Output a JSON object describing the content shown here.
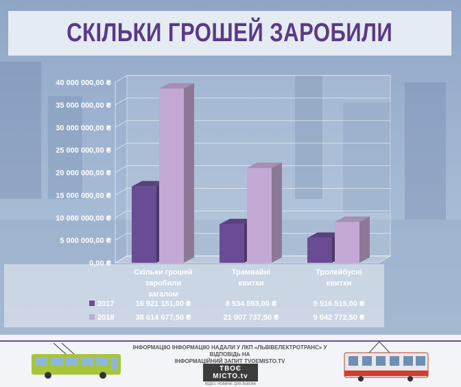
{
  "title": "СКІЛЬКИ ГРОШЕЙ ЗАРОБИЛИ",
  "footer": {
    "info_line1": "ІНФОРМАЦІЮ ІНФОРМАЦІЮ НАДАЛИ У ЛКП «ЛЬВІВЕЛЕКТРОТРАНС» У ВІДПОВІДЬ НА",
    "info_line2": "ІНФОРМАЦІЙНИЙ ЗАПИТ TVOEMISTO.TV",
    "logo": "ТВОЄ МІСТО.tv",
    "logo_sub": "ВІДЕО. НОВИНИ. ДЛЯ ЛЬВОВА"
  },
  "colors": {
    "s2017": "#6a4c95",
    "s2018": "#c2a8d3",
    "title": "#5b3a86"
  },
  "chart_data": {
    "type": "bar",
    "categories": [
      "Скільки грошей заробили загалом",
      "Трамвайні квитки",
      "Тролейбусні квитки"
    ],
    "series": [
      {
        "name": "2017",
        "values": [
          16921151.0,
          8534593.0,
          5516515.0
        ],
        "labels": [
          "16 921 151,00 ₴",
          "8 534 593,00 ₴",
          "5 516 515,00 ₴"
        ]
      },
      {
        "name": "2018",
        "values": [
          38614677.5,
          21007737.5,
          9042772.5
        ],
        "labels": [
          "38 614 677,50 ₴",
          "21 007 737,50 ₴",
          "9 042 772,50 ₴"
        ]
      }
    ],
    "yticks": [
      0,
      5000000,
      10000000,
      15000000,
      20000000,
      25000000,
      30000000,
      35000000,
      40000000
    ],
    "ytick_labels": [
      "0,00 ₴",
      "5 000 000,00 ₴",
      "10 000 000,00 ₴",
      "15 000 000,00 ₴",
      "20 000 000,00 ₴",
      "25 000 000,00 ₴",
      "30 000 000,00 ₴",
      "35 000 000,00 ₴",
      "40 000 000,00 ₴"
    ],
    "ylim": [
      0,
      40000000
    ],
    "grid": true,
    "legend": "data-table"
  }
}
